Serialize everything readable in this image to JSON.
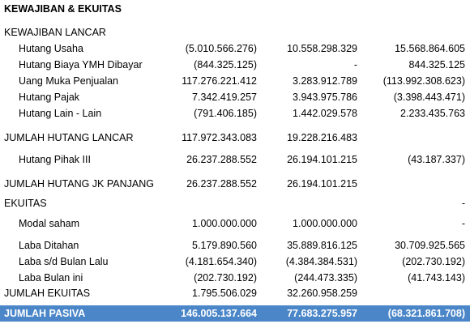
{
  "title": "KEWAJIBAN & EKUITAS",
  "sections": {
    "kewajiban_lancar": "KEWAJIBAN LANCAR",
    "ekuitas": "EKUITAS"
  },
  "rows": {
    "hutang_usaha": {
      "label": "Hutang Usaha",
      "v1": "(5.010.566.276)",
      "v2": "10.558.298.329",
      "v3": "15.568.864.605"
    },
    "hutang_biaya": {
      "label": "Hutang Biaya YMH Dibayar",
      "v1": "(844.325.125)",
      "v2": "-",
      "v3": "844.325.125"
    },
    "uang_muka": {
      "label": "Uang Muka Penjualan",
      "v1": "117.276.221.412",
      "v2": "3.283.912.789",
      "v3": "(113.992.308.623)"
    },
    "hutang_pajak": {
      "label": "Hutang Pajak",
      "v1": "7.342.419.257",
      "v2": "3.943.975.786",
      "v3": "(3.398.443.471)"
    },
    "hutang_lain": {
      "label": "Hutang Lain - Lain",
      "v1": "(791.406.185)",
      "v2": "1.442.029.578",
      "v3": "2.233.435.763"
    },
    "jumlah_hutang_lancar": {
      "label": "JUMLAH HUTANG LANCAR",
      "v1": "117.972.343.083",
      "v2": "19.228.216.483",
      "v3": ""
    },
    "hutang_pihak_iii": {
      "label": "Hutang Pihak III",
      "v1": "26.237.288.552",
      "v2": "26.194.101.215",
      "v3": "(43.187.337)"
    },
    "jumlah_hutang_jk": {
      "label": "JUMLAH HUTANG JK PANJANG",
      "v1": "26.237.288.552",
      "v2": "26.194.101.215",
      "v3": ""
    },
    "ekuitas_dash": {
      "v3": "-"
    },
    "modal_saham": {
      "label": "Modal saham",
      "v1": "1.000.000.000",
      "v2": "1.000.000.000",
      "v3": "-"
    },
    "laba_ditahan": {
      "label": "Laba Ditahan",
      "v1": "5.179.890.560",
      "v2": "35.889.816.125",
      "v3": "30.709.925.565"
    },
    "laba_sd": {
      "label": "Laba s/d Bulan Lalu",
      "v1": "(4.181.654.340)",
      "v2": "(4.384.384.531)",
      "v3": "(202.730.192)"
    },
    "laba_bulan_ini": {
      "label": "Laba Bulan ini",
      "v1": "(202.730.192)",
      "v2": "(244.473.335)",
      "v3": "(41.743.143)"
    },
    "jumlah_ekuitas": {
      "label": "JUMLAH EKUITAS",
      "v1": "1.795.506.029",
      "v2": "32.260.958.259",
      "v3": ""
    },
    "jumlah_pasiva": {
      "label": "JUMLAH PASIVA",
      "v1": "146.005.137.664",
      "v2": "77.683.275.957",
      "v3": "(68.321.861.708)"
    }
  },
  "colors": {
    "total_bar": "#4a86c8",
    "total_text": "#ffffff"
  }
}
